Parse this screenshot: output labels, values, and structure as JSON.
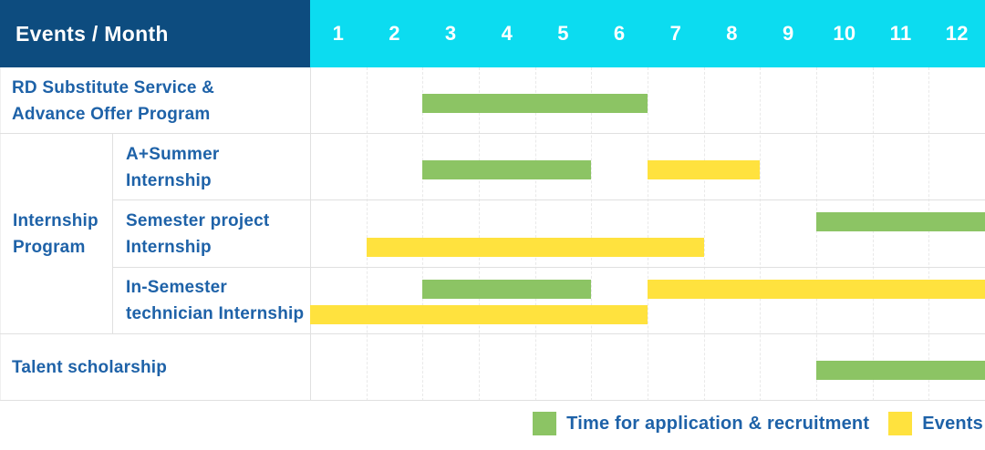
{
  "header": {
    "title": "Events / Month",
    "months": [
      "1",
      "2",
      "3",
      "4",
      "5",
      "6",
      "7",
      "8",
      "9",
      "10",
      "11",
      "12"
    ]
  },
  "colors": {
    "header_bg": "#0D4C7F",
    "months_bg": "#0CDCF0",
    "text_blue": "#1E62A8",
    "application_green": "#8CC464",
    "events_yellow": "#FFE23E"
  },
  "legend": [
    {
      "key": "application",
      "label": "Time for application & recruitment",
      "color": "#8CC464"
    },
    {
      "key": "events",
      "label": "Events",
      "color": "#FFE23E"
    }
  ],
  "chart_data": {
    "type": "gantt",
    "xlabel": "Month",
    "x_ticks": [
      1,
      2,
      3,
      4,
      5,
      6,
      7,
      8,
      9,
      10,
      11,
      12
    ],
    "x_range": [
      1,
      12
    ],
    "series_legend": {
      "application": "Time for application & recruitment",
      "events": "Events"
    },
    "rows": [
      {
        "group": "RD Substitute Service & Advance Offer Program",
        "group_display": "RD Substitute Service &\nAdvance Offer Program",
        "item": null,
        "bars": [
          {
            "series": "application",
            "start_month": 3,
            "end_month": 6,
            "lane": "single"
          }
        ]
      },
      {
        "group": "Internship Program",
        "group_display": "Internship\nProgram",
        "item": "A+Summer Internship",
        "item_display": "A+Summer\nInternship",
        "bars": [
          {
            "series": "application",
            "start_month": 3,
            "end_month": 5,
            "lane": "single"
          },
          {
            "series": "events",
            "start_month": 7,
            "end_month": 8,
            "lane": "single"
          }
        ]
      },
      {
        "group": "Internship Program",
        "group_display": "Internship\nProgram",
        "item": "Semester project Internship",
        "item_display": "Semester project\nInternship",
        "bars": [
          {
            "series": "application",
            "start_month": 10,
            "end_month": 12,
            "lane": "top"
          },
          {
            "series": "events",
            "start_month": 2,
            "end_month": 7,
            "lane": "bottom"
          }
        ]
      },
      {
        "group": "Internship Program",
        "group_display": "Internship\nProgram",
        "item": "In-Semester technician Internship",
        "item_display": "In-Semester\ntechnician Internship",
        "bars": [
          {
            "series": "application",
            "start_month": 3,
            "end_month": 5,
            "lane": "top"
          },
          {
            "series": "events",
            "start_month": 7,
            "end_month": 12,
            "lane": "top"
          },
          {
            "series": "events",
            "start_month": 1,
            "end_month": 6,
            "lane": "bottom"
          }
        ]
      },
      {
        "group": "Talent scholarship",
        "group_display": "Talent scholarship",
        "item": null,
        "bars": [
          {
            "series": "application",
            "start_month": 10,
            "end_month": 12,
            "lane": "single"
          }
        ]
      }
    ]
  }
}
